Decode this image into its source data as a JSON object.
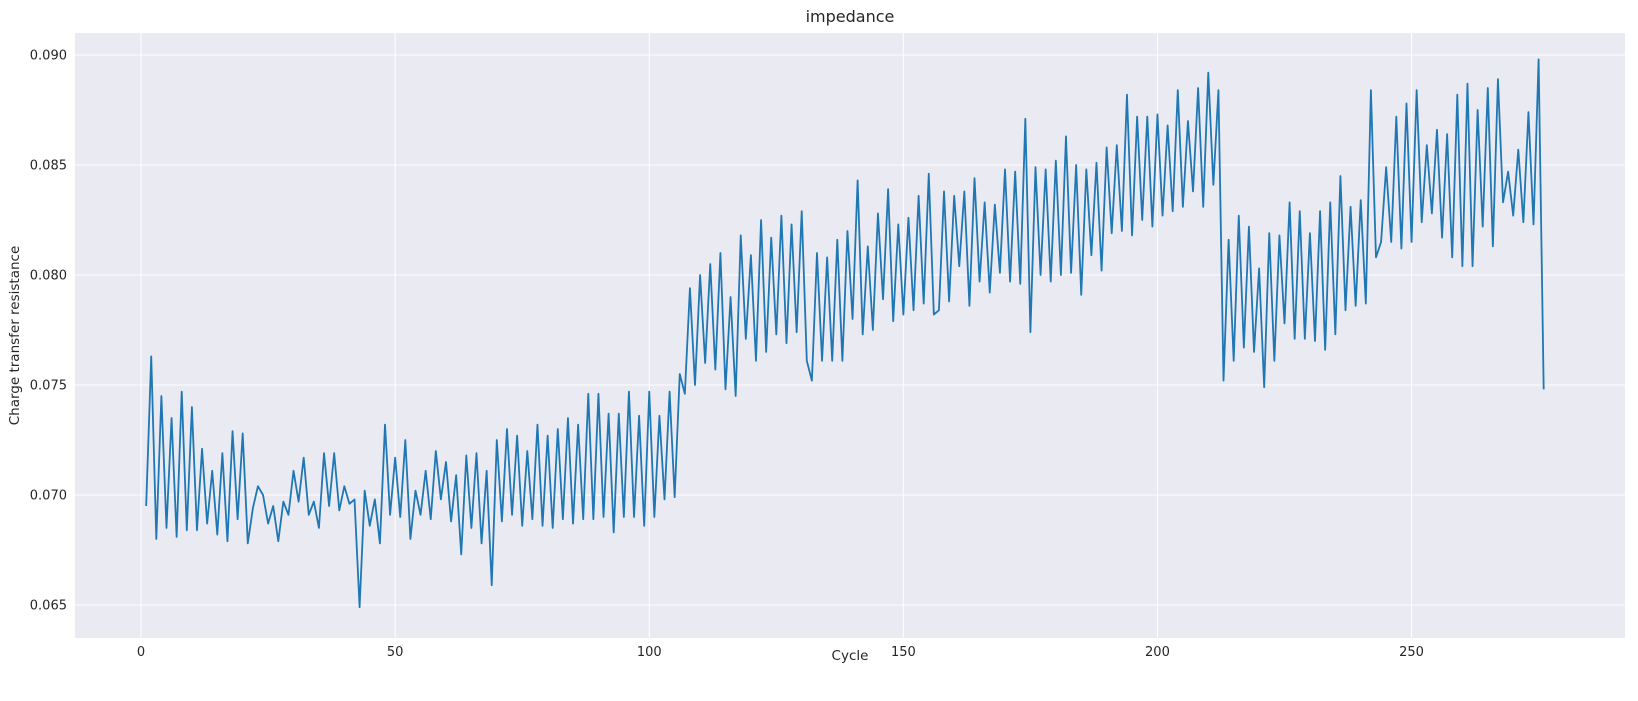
{
  "chart_data": {
    "type": "line",
    "title": "impedance",
    "xlabel": "Cycle",
    "ylabel": "Charge transfer resistance",
    "xlim": [
      -13,
      292
    ],
    "ylim": [
      0.0635,
      0.091
    ],
    "xticks": [
      0,
      50,
      100,
      150,
      200,
      250
    ],
    "yticks": [
      0.065,
      0.07,
      0.075,
      0.08,
      0.085,
      0.09
    ],
    "ytick_labels": [
      "0.065",
      "0.070",
      "0.075",
      "0.080",
      "0.085",
      "0.090"
    ],
    "grid": true,
    "colors": {
      "background": "#eaeaf2",
      "grid": "#ffffff",
      "line": "#1f77b4"
    },
    "series": [
      {
        "x_start": 1,
        "values": [
          0.0695,
          0.0763,
          0.068,
          0.0745,
          0.0685,
          0.0735,
          0.0681,
          0.0747,
          0.0684,
          0.074,
          0.0684,
          0.0721,
          0.0687,
          0.0711,
          0.0682,
          0.0719,
          0.0679,
          0.0729,
          0.0689,
          0.0728,
          0.0678,
          0.0694,
          0.0704,
          0.07,
          0.0687,
          0.0695,
          0.0679,
          0.0697,
          0.0691,
          0.0711,
          0.0697,
          0.0717,
          0.0691,
          0.0697,
          0.0685,
          0.0719,
          0.0695,
          0.0719,
          0.0693,
          0.0704,
          0.0696,
          0.0698,
          0.0649,
          0.0702,
          0.0686,
          0.0698,
          0.0678,
          0.0732,
          0.0691,
          0.0717,
          0.069,
          0.0725,
          0.068,
          0.0702,
          0.0691,
          0.0711,
          0.0689,
          0.072,
          0.0698,
          0.0715,
          0.0688,
          0.0709,
          0.0673,
          0.0718,
          0.0685,
          0.0719,
          0.0678,
          0.0711,
          0.0659,
          0.0725,
          0.0688,
          0.073,
          0.0691,
          0.0727,
          0.0686,
          0.072,
          0.0689,
          0.0732,
          0.0686,
          0.0727,
          0.0685,
          0.073,
          0.0689,
          0.0735,
          0.0687,
          0.0732,
          0.0689,
          0.0746,
          0.0689,
          0.0746,
          0.069,
          0.0737,
          0.0683,
          0.0737,
          0.069,
          0.0747,
          0.069,
          0.0736,
          0.0686,
          0.0747,
          0.069,
          0.0736,
          0.0698,
          0.0747,
          0.0699,
          0.0755,
          0.0746,
          0.0794,
          0.075,
          0.08,
          0.076,
          0.0805,
          0.0757,
          0.081,
          0.0748,
          0.079,
          0.0745,
          0.0818,
          0.0771,
          0.0809,
          0.0761,
          0.0825,
          0.0765,
          0.0817,
          0.0773,
          0.0827,
          0.0769,
          0.0823,
          0.0774,
          0.0829,
          0.0761,
          0.0752,
          0.081,
          0.0761,
          0.0808,
          0.0761,
          0.0816,
          0.0761,
          0.082,
          0.078,
          0.0843,
          0.0773,
          0.0813,
          0.0775,
          0.0828,
          0.0789,
          0.0839,
          0.0779,
          0.0823,
          0.0782,
          0.0826,
          0.0784,
          0.0836,
          0.0787,
          0.0846,
          0.0782,
          0.0784,
          0.0838,
          0.0788,
          0.0836,
          0.0804,
          0.0838,
          0.0786,
          0.0844,
          0.0797,
          0.0833,
          0.0792,
          0.0832,
          0.0801,
          0.0848,
          0.0797,
          0.0847,
          0.0796,
          0.0871,
          0.0774,
          0.0849,
          0.08,
          0.0848,
          0.0797,
          0.0852,
          0.08,
          0.0863,
          0.0801,
          0.085,
          0.0791,
          0.0848,
          0.0809,
          0.0851,
          0.0802,
          0.0858,
          0.0819,
          0.0859,
          0.082,
          0.0882,
          0.0818,
          0.0872,
          0.0825,
          0.0872,
          0.0822,
          0.0873,
          0.0827,
          0.0868,
          0.0829,
          0.0884,
          0.0831,
          0.087,
          0.0838,
          0.0885,
          0.0831,
          0.0892,
          0.0841,
          0.0884,
          0.0752,
          0.0816,
          0.0761,
          0.0827,
          0.0767,
          0.0822,
          0.0765,
          0.0803,
          0.0749,
          0.0819,
          0.0761,
          0.0818,
          0.0778,
          0.0833,
          0.0771,
          0.0829,
          0.0771,
          0.0819,
          0.077,
          0.0829,
          0.0766,
          0.0833,
          0.0773,
          0.0845,
          0.0784,
          0.0831,
          0.0786,
          0.0834,
          0.0787,
          0.0884,
          0.0808,
          0.0815,
          0.0849,
          0.0815,
          0.0872,
          0.0812,
          0.0878,
          0.0815,
          0.0884,
          0.0824,
          0.0859,
          0.0828,
          0.0866,
          0.0817,
          0.0864,
          0.0808,
          0.0882,
          0.0804,
          0.0887,
          0.0804,
          0.0875,
          0.0822,
          0.0885,
          0.0813,
          0.0889,
          0.0833,
          0.0847,
          0.0827,
          0.0857,
          0.0824,
          0.0874,
          0.0823,
          0.0898,
          0.0748
        ]
      }
    ]
  }
}
